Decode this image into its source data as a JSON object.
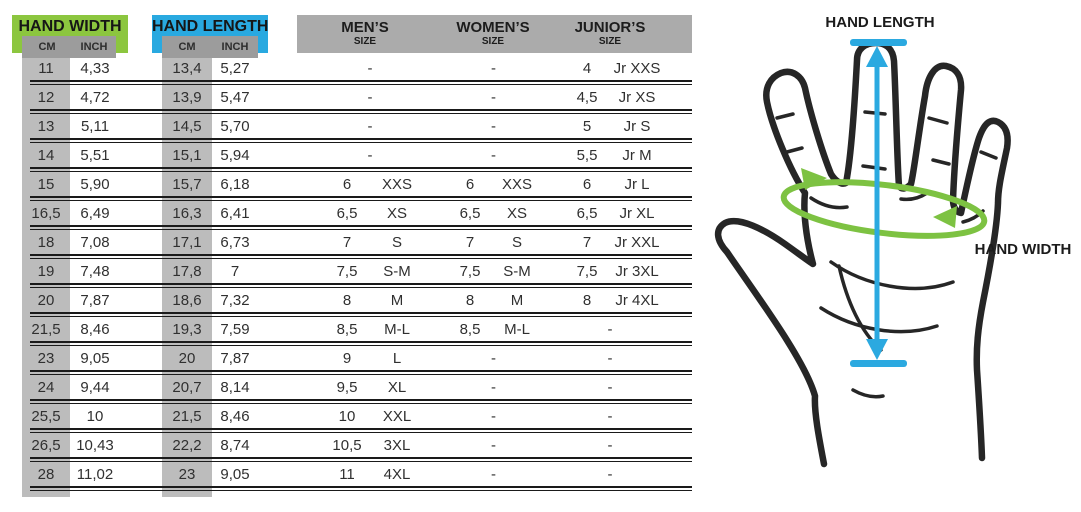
{
  "table": {
    "headers": {
      "hand_width": {
        "title": "HAND WIDTH",
        "unit_primary": "CM",
        "unit_secondary": "INCH"
      },
      "hand_length": {
        "title": "HAND LENGTH",
        "unit_primary": "CM",
        "unit_secondary": "INCH"
      },
      "mens": {
        "title": "MEN’S",
        "subtitle": "SIZE"
      },
      "womens": {
        "title": "WOMEN’S",
        "subtitle": "SIZE"
      },
      "juniors": {
        "title": "JUNIOR’S",
        "subtitle": "SIZE"
      }
    }
  },
  "chart_data": {
    "type": "table",
    "columns": [
      "hand_width_cm",
      "hand_width_inch",
      "hand_length_cm",
      "hand_length_inch",
      "mens_size_num",
      "mens_size_label",
      "womens_size_num",
      "womens_size_label",
      "juniors_size_num",
      "juniors_size_label"
    ],
    "rows": [
      [
        "11",
        "4,33",
        "13,4",
        "5,27",
        "-",
        "",
        "-",
        "",
        "4",
        "Jr XXS"
      ],
      [
        "12",
        "4,72",
        "13,9",
        "5,47",
        "-",
        "",
        "-",
        "",
        "4,5",
        "Jr XS"
      ],
      [
        "13",
        "5,11",
        "14,5",
        "5,70",
        "-",
        "",
        "-",
        "",
        "5",
        "Jr S"
      ],
      [
        "14",
        "5,51",
        "15,1",
        "5,94",
        "-",
        "",
        "-",
        "",
        "5,5",
        "Jr M"
      ],
      [
        "15",
        "5,90",
        "15,7",
        "6,18",
        "6",
        "XXS",
        "6",
        "XXS",
        "6",
        "Jr L"
      ],
      [
        "16,5",
        "6,49",
        "16,3",
        "6,41",
        "6,5",
        "XS",
        "6,5",
        "XS",
        "6,5",
        "Jr XL"
      ],
      [
        "18",
        "7,08",
        "17,1",
        "6,73",
        "7",
        "S",
        "7",
        "S",
        "7",
        "Jr XXL"
      ],
      [
        "19",
        "7,48",
        "17,8",
        "7",
        "7,5",
        "S-M",
        "7,5",
        "S-M",
        "7,5",
        "Jr 3XL"
      ],
      [
        "20",
        "7,87",
        "18,6",
        "7,32",
        "8",
        "M",
        "8",
        "M",
        "8",
        "Jr 4XL"
      ],
      [
        "21,5",
        "8,46",
        "19,3",
        "7,59",
        "8,5",
        "M-L",
        "8,5",
        "M-L",
        "-",
        ""
      ],
      [
        "23",
        "9,05",
        "20",
        "7,87",
        "9",
        "L",
        "-",
        "",
        "-",
        ""
      ],
      [
        "24",
        "9,44",
        "20,7",
        "8,14",
        "9,5",
        "XL",
        "-",
        "",
        "-",
        ""
      ],
      [
        "25,5",
        "10",
        "21,5",
        "8,46",
        "10",
        "XXL",
        "-",
        "",
        "-",
        ""
      ],
      [
        "26,5",
        "10,43",
        "22,2",
        "8,74",
        "10,5",
        "3XL",
        "-",
        "",
        "-",
        ""
      ],
      [
        "28",
        "11,02",
        "23",
        "9,05",
        "11",
        "4XL",
        "-",
        "",
        "-",
        ""
      ]
    ]
  },
  "illustration": {
    "hand_length_label": "HAND LENGTH",
    "hand_width_label": "HAND WIDTH"
  },
  "colors": {
    "hand_width_green": "#8cc63f",
    "hand_length_blue": "#29a9e0",
    "size_bar_gray": "#ababab",
    "unit_bar_gray": "#9c9c9c",
    "column_stripe_gray": "#bcbcbc",
    "separator_black": "#1a1a1a",
    "measure_blue": "#2ba9e0",
    "measure_green": "#7dc242",
    "hand_outline": "#262626"
  }
}
